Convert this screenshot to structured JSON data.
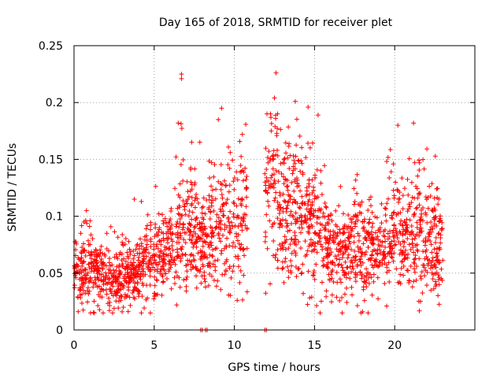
{
  "chart_data": {
    "type": "scatter",
    "title": "Day 165 of 2018, SRMTID for receiver plet",
    "xlabel": "GPS time / hours",
    "ylabel": "SRMTID / TECUs",
    "xlim": [
      0,
      25
    ],
    "ylim": [
      0,
      0.25
    ],
    "x_ticks": [
      0,
      5,
      10,
      15,
      20
    ],
    "y_ticks": [
      0,
      0.05,
      0.1,
      0.15,
      0.2,
      0.25
    ],
    "x_tick_labels": [
      "0",
      "5",
      "10",
      "15",
      "20"
    ],
    "y_tick_labels": [
      "0",
      "0.05",
      "0.1",
      "0.15",
      "0.2",
      "0.25"
    ],
    "grid": true,
    "marker": "+",
    "series": [
      {
        "name": "SRMTID",
        "color": "#ff0000",
        "trend_profile": [
          {
            "x": 0.0,
            "y": 0.048
          },
          {
            "x": 1.0,
            "y": 0.052
          },
          {
            "x": 2.0,
            "y": 0.046
          },
          {
            "x": 2.5,
            "y": 0.04
          },
          {
            "x": 3.0,
            "y": 0.046
          },
          {
            "x": 4.0,
            "y": 0.052
          },
          {
            "x": 5.0,
            "y": 0.058
          },
          {
            "x": 6.0,
            "y": 0.07
          },
          {
            "x": 7.0,
            "y": 0.085
          },
          {
            "x": 8.0,
            "y": 0.075
          },
          {
            "x": 9.0,
            "y": 0.09
          },
          {
            "x": 10.0,
            "y": 0.085
          },
          {
            "x": 10.6,
            "y": 0.1
          },
          {
            "x": 12.0,
            "y": 0.115
          },
          {
            "x": 12.5,
            "y": 0.12
          },
          {
            "x": 13.0,
            "y": 0.105
          },
          {
            "x": 14.0,
            "y": 0.1
          },
          {
            "x": 15.0,
            "y": 0.095
          },
          {
            "x": 16.0,
            "y": 0.065
          },
          {
            "x": 17.0,
            "y": 0.068
          },
          {
            "x": 18.0,
            "y": 0.075
          },
          {
            "x": 19.0,
            "y": 0.065
          },
          {
            "x": 20.0,
            "y": 0.08
          },
          {
            "x": 21.0,
            "y": 0.085
          },
          {
            "x": 22.0,
            "y": 0.08
          },
          {
            "x": 23.0,
            "y": 0.07
          }
        ],
        "data_gaps": [
          {
            "from": 10.8,
            "to": 11.9
          }
        ],
        "highlight_points": [
          {
            "x": 6.7,
            "y": 0.225
          },
          {
            "x": 6.7,
            "y": 0.221
          },
          {
            "x": 12.6,
            "y": 0.226
          },
          {
            "x": 12.5,
            "y": 0.204
          },
          {
            "x": 9.2,
            "y": 0.195
          },
          {
            "x": 13.8,
            "y": 0.201
          },
          {
            "x": 14.6,
            "y": 0.196
          },
          {
            "x": 20.2,
            "y": 0.18
          },
          {
            "x": 6.5,
            "y": 0.182
          },
          {
            "x": 9.0,
            "y": 0.185
          },
          {
            "x": 10.5,
            "y": 0.172
          },
          {
            "x": 12.3,
            "y": 0.175
          },
          {
            "x": 4.2,
            "y": 0.113
          },
          {
            "x": 1.0,
            "y": 0.096
          },
          {
            "x": 3.0,
            "y": 0.016
          },
          {
            "x": 18.0,
            "y": 0.016
          },
          {
            "x": 19.5,
            "y": 0.021
          },
          {
            "x": 6.4,
            "y": 0.022
          },
          {
            "x": 2.5,
            "y": 0.019
          }
        ],
        "zero_points": [
          {
            "x": 7.9,
            "y": 0
          },
          {
            "x": 8.0,
            "y": 0
          },
          {
            "x": 8.2,
            "y": 0
          },
          {
            "x": 8.3,
            "y": 0
          },
          {
            "x": 11.9,
            "y": 0
          },
          {
            "x": 12.0,
            "y": 0
          }
        ]
      }
    ]
  }
}
